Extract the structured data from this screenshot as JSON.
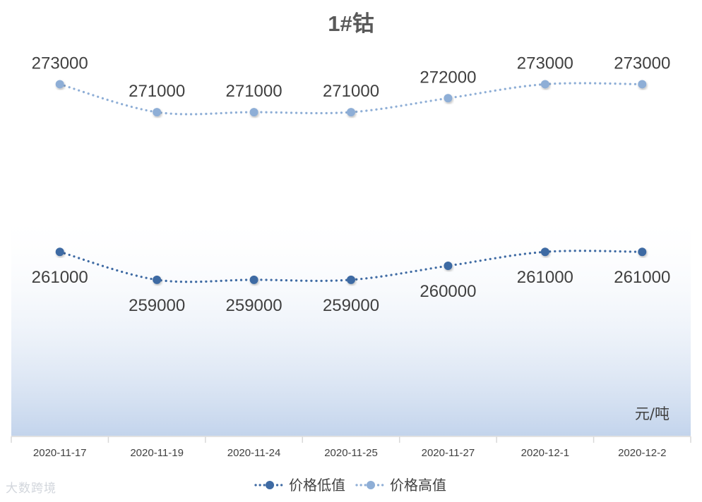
{
  "chart_data": {
    "type": "line",
    "title": "1#钴",
    "unit_label": "元/吨",
    "categories": [
      "2020-11-17",
      "2020-11-19",
      "2020-11-24",
      "2020-11-25",
      "2020-11-27",
      "2020-12-1",
      "2020-12-2"
    ],
    "series": [
      {
        "name": "价格低值",
        "values": [
          261000,
          259000,
          259000,
          259000,
          260000,
          261000,
          261000
        ],
        "color": "#3e6aa3",
        "label_position": "below"
      },
      {
        "name": "价格高值",
        "values": [
          273000,
          271000,
          271000,
          271000,
          272000,
          273000,
          273000
        ],
        "color": "#8eaed6",
        "label_position": "above"
      }
    ],
    "ylim": [
      249000,
      276000
    ],
    "high_low_lines": true,
    "line_style": "dotted-smooth",
    "grid": false,
    "legend_position": "bottom",
    "colors": {
      "title": "#595959",
      "labels": "#404040",
      "axis_text": "#404040",
      "axis_line": "#d9d9d9",
      "drop_line": "#b4c8e4",
      "plot_gradient_top": "#ffffff",
      "plot_gradient_bottom": "#c3d4ec"
    }
  },
  "watermark": {
    "text": "大数跨境"
  }
}
